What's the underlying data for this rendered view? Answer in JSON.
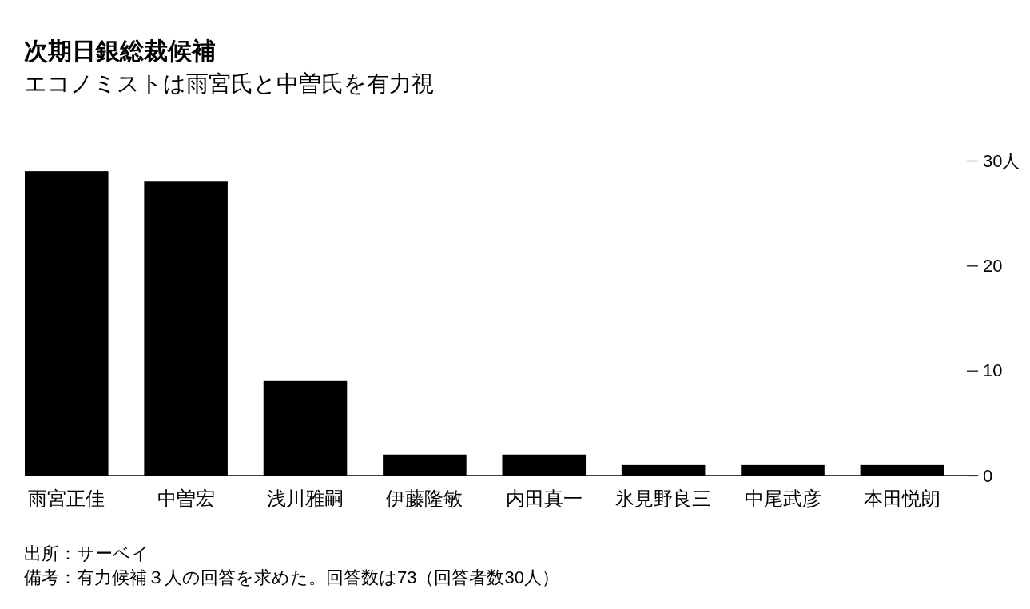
{
  "chart_data": {
    "type": "bar",
    "title": "次期日銀総裁候補",
    "subtitle": "エコノミストは雨宮氏と中曽氏を有力視",
    "categories": [
      "雨宮正佳",
      "中曽宏",
      "浅川雅嗣",
      "伊藤隆敏",
      "内田真一",
      "氷見野良三",
      "中尾武彦",
      "本田悦朗"
    ],
    "values": [
      29,
      28,
      9,
      2,
      2,
      1,
      1,
      1
    ],
    "color": "#000000",
    "ylim": [
      0,
      30
    ],
    "yticks": [
      0,
      10,
      20,
      {
        "value": 30,
        "label": "30人"
      }
    ],
    "annotations": [
      "出所：サーベイ",
      "備考：有力候補３人の回答を求めた。回答数は73（回答者数30人）"
    ]
  }
}
